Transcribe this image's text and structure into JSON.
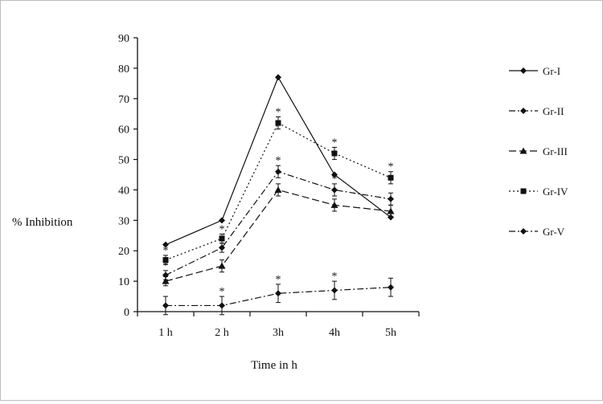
{
  "chart_data": {
    "type": "line",
    "title": "",
    "xlabel": "Time in h",
    "ylabel": "% Inhibition",
    "categories": [
      "1 h",
      "2 h",
      "3h",
      "4h",
      "5h"
    ],
    "yticks": [
      0,
      10,
      20,
      30,
      40,
      50,
      60,
      70,
      80,
      90
    ],
    "ylim": [
      0,
      90
    ],
    "grid": false,
    "legend_position": "right",
    "significance_marker": "*",
    "series": [
      {
        "name": "Gr-I",
        "values": [
          22,
          30,
          77,
          45,
          31
        ],
        "errors": [
          0,
          0,
          0,
          0,
          0
        ],
        "marker": "diamond",
        "dash": "solid",
        "significance": [
          false,
          false,
          false,
          false,
          false
        ]
      },
      {
        "name": "Gr-II",
        "values": [
          12,
          21,
          46,
          40,
          37
        ],
        "errors": [
          1.5,
          1.5,
          2,
          2,
          2
        ],
        "marker": "diamond",
        "dash": "dashdot",
        "significance": [
          true,
          true,
          true,
          true,
          false
        ]
      },
      {
        "name": "Gr-III",
        "values": [
          10,
          15,
          40,
          35,
          33
        ],
        "errors": [
          1.5,
          2,
          2,
          2,
          2
        ],
        "marker": "triangle",
        "dash": "dash",
        "significance": [
          false,
          false,
          false,
          false,
          false
        ]
      },
      {
        "name": "Gr-IV",
        "values": [
          17,
          24,
          62,
          52,
          44
        ],
        "errors": [
          1.5,
          1.5,
          2,
          2,
          2
        ],
        "marker": "square",
        "dash": "dot",
        "significance": [
          true,
          true,
          true,
          true,
          true
        ]
      },
      {
        "name": "Gr-V",
        "values": [
          2,
          2,
          6,
          7,
          8
        ],
        "errors": [
          3,
          3,
          3,
          3,
          3
        ],
        "marker": "diamond",
        "dash": "dashdot",
        "significance": [
          false,
          true,
          true,
          true,
          false
        ]
      }
    ]
  }
}
